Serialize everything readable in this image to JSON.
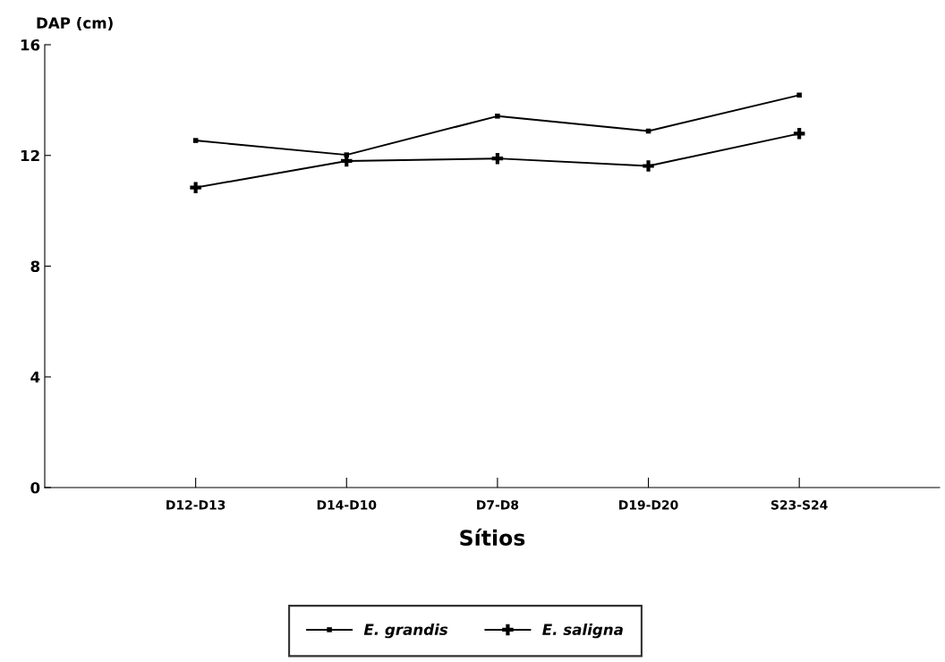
{
  "chart_data": {
    "type": "line",
    "ylabel": "DAP (cm)",
    "xlabel": "Sítios",
    "categories": [
      "D12-D13",
      "D14-D10",
      "D7-D8",
      "D19-D20",
      "S23-S24"
    ],
    "series": [
      {
        "name": "E. grandis",
        "color": "#000000",
        "marker": "square",
        "values": [
          12.54,
          12.02,
          13.42,
          12.88,
          14.18
        ]
      },
      {
        "name": "E. saligna",
        "color": "#000000",
        "marker": "cross",
        "values": [
          10.84,
          11.8,
          11.89,
          11.62,
          12.79
        ]
      }
    ],
    "ylim": [
      0,
      16
    ],
    "yticks": [
      0,
      4,
      8,
      12,
      16
    ],
    "grid": false,
    "legend": "bottom",
    "line_style": "solid"
  }
}
